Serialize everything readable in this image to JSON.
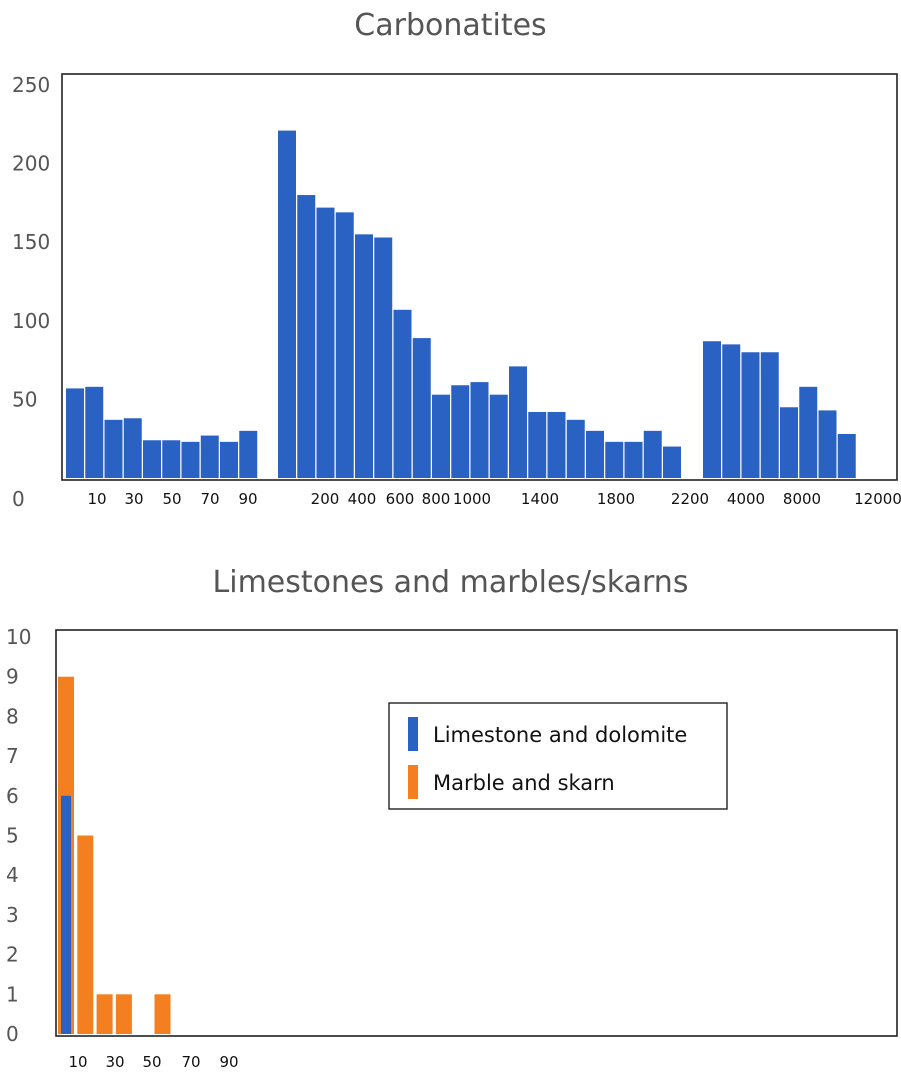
{
  "chart_data": [
    {
      "type": "bar",
      "title": "Carbonatites",
      "xlabel": "",
      "ylabel": "",
      "ylim": [
        0,
        260
      ],
      "yticks": [
        "0",
        "50",
        "100",
        "150",
        "200",
        "250"
      ],
      "x_tick_labels": [
        "10",
        "30",
        "50",
        "70",
        "90",
        "200",
        "400",
        "600",
        "800",
        "1000",
        "1400",
        "1800",
        "2200",
        "4000",
        "8000",
        "12000"
      ],
      "series": [
        {
          "color": "#2a62c4",
          "groups": [
            [
              57,
              58,
              37,
              38,
              24,
              24,
              23,
              27,
              23,
              30
            ],
            [
              221,
              180,
              172,
              169,
              155,
              153,
              107,
              89,
              53,
              59,
              61,
              53,
              71,
              42,
              42,
              37,
              30,
              23,
              23,
              30,
              20
            ],
            [
              87,
              85,
              80,
              80,
              45,
              58,
              43,
              28
            ]
          ]
        }
      ]
    },
    {
      "type": "bar",
      "title": "Limestones and marbles/skarns",
      "xlabel": "",
      "ylabel": "",
      "ylim": [
        0,
        10
      ],
      "yticks": [
        "0",
        "1",
        "2",
        "3",
        "4",
        "5",
        "6",
        "7",
        "8",
        "9",
        "10"
      ],
      "x_tick_labels": [
        "10",
        "30",
        "50",
        "70",
        "90"
      ],
      "legend": {
        "position": "upper-right"
      },
      "series": [
        {
          "name": "Limestone and dolomite",
          "color": "#2a62c4",
          "values": [
            6,
            0,
            0,
            0,
            0,
            0,
            0,
            0,
            0
          ]
        },
        {
          "name": "Marble and skarn",
          "color": "#f47f20",
          "values": [
            9,
            5,
            1,
            1,
            0,
            1,
            0,
            0,
            0
          ]
        }
      ]
    }
  ]
}
